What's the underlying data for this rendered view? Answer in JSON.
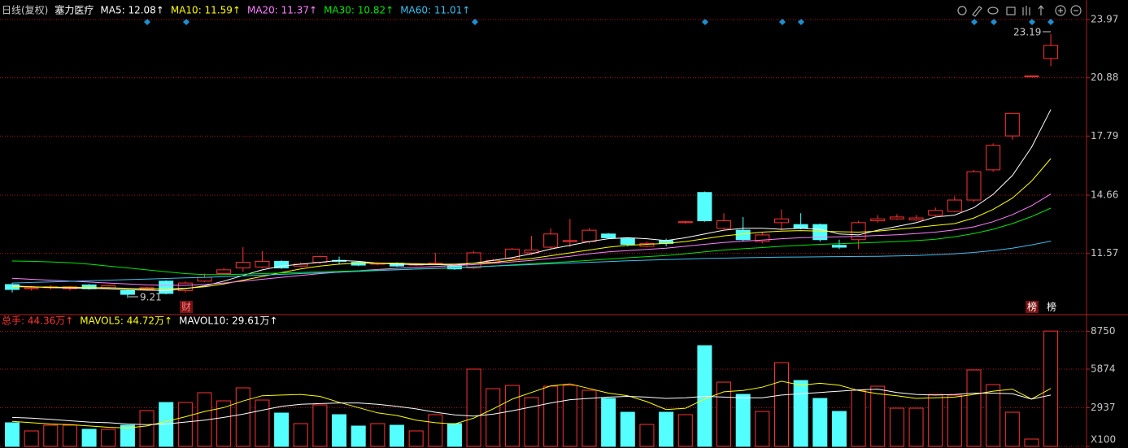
{
  "chart_data": [
    {
      "type": "candlestick",
      "title": "日线(复权)",
      "subtitle": "塞力医疗",
      "categories": [
        null,
        null,
        null,
        null,
        null,
        null,
        null,
        null,
        null,
        null,
        null,
        null,
        null,
        null,
        null,
        null,
        null,
        null,
        null,
        null,
        null,
        null,
        null,
        null,
        null,
        null,
        null,
        null,
        null,
        null,
        null,
        null,
        null,
        null,
        null,
        null,
        null,
        null,
        null,
        null,
        null,
        null,
        null,
        null,
        null,
        null,
        null,
        null,
        null,
        null,
        null,
        null,
        null,
        null,
        null
      ],
      "open": [
        9.92,
        9.7,
        9.75,
        9.7,
        9.9,
        9.75,
        9.6,
        9.65,
        10.1,
        9.6,
        10.1,
        10.5,
        10.8,
        10.85,
        11.15,
        10.9,
        11.1,
        11.2,
        11.1,
        11.0,
        11.05,
        10.95,
        11.0,
        10.9,
        10.8,
        11.1,
        11.3,
        11.6,
        11.9,
        12.2,
        12.2,
        12.6,
        12.35,
        11.95,
        12.25,
        13.2,
        14.8,
        12.9,
        12.8,
        12.2,
        13.2,
        13.1,
        13.1,
        12.0,
        12.3,
        13.3,
        13.4,
        13.35,
        13.6,
        13.8,
        14.4,
        16.0,
        17.8,
        20.95,
        21.9
      ],
      "high": [
        10.0,
        9.85,
        9.9,
        9.85,
        9.95,
        9.9,
        9.65,
        9.8,
        10.15,
        10.1,
        10.5,
        10.8,
        11.9,
        11.7,
        11.2,
        11.1,
        11.45,
        11.4,
        11.15,
        11.1,
        11.1,
        11.05,
        11.6,
        10.8,
        11.7,
        11.3,
        11.85,
        12.5,
        12.9,
        13.4,
        12.9,
        12.65,
        12.4,
        12.2,
        12.35,
        13.3,
        14.85,
        13.7,
        13.5,
        12.7,
        13.9,
        13.7,
        13.15,
        12.3,
        13.3,
        13.6,
        13.65,
        13.6,
        14.0,
        14.6,
        16.0,
        17.4,
        19.0,
        20.98,
        23.19
      ],
      "low": [
        9.5,
        9.6,
        9.65,
        9.6,
        9.65,
        9.7,
        9.21,
        9.6,
        9.4,
        9.5,
        10.05,
        10.45,
        10.6,
        10.8,
        10.75,
        10.85,
        11.0,
        11.0,
        10.9,
        10.95,
        10.85,
        10.9,
        10.95,
        10.7,
        10.75,
        11.05,
        11.25,
        11.5,
        11.8,
        11.9,
        12.1,
        12.35,
        11.95,
        11.9,
        11.95,
        13.15,
        13.25,
        12.85,
        12.2,
        12.1,
        12.8,
        12.85,
        12.2,
        11.8,
        11.8,
        13.2,
        13.35,
        13.3,
        13.55,
        13.75,
        14.3,
        15.9,
        17.6,
        20.95,
        21.5
      ],
      "close": [
        9.66,
        9.75,
        9.8,
        9.8,
        9.7,
        9.85,
        9.4,
        9.75,
        9.45,
        10.0,
        10.3,
        10.7,
        11.1,
        11.15,
        10.8,
        11.0,
        11.4,
        11.15,
        10.95,
        11.05,
        10.9,
        11.0,
        11.05,
        10.75,
        11.6,
        11.2,
        11.8,
        11.75,
        12.6,
        12.25,
        12.8,
        12.4,
        12.05,
        12.1,
        12.1,
        13.25,
        13.3,
        13.3,
        12.3,
        12.55,
        13.4,
        12.9,
        12.3,
        11.9,
        13.2,
        13.4,
        13.5,
        13.45,
        13.85,
        14.4,
        15.9,
        17.3,
        19.0,
        20.98,
        22.6
      ],
      "up_color": "#ff3232",
      "down_color": "#54ffff",
      "series": [
        {
          "name": "MA5: 12.08↑",
          "color": "#ffffff",
          "values": [
            9.85,
            9.8,
            9.76,
            9.74,
            9.72,
            9.7,
            9.65,
            9.62,
            9.6,
            9.7,
            9.85,
            10.1,
            10.4,
            10.7,
            10.9,
            11.0,
            11.1,
            11.2,
            11.15,
            11.05,
            11.0,
            10.98,
            10.98,
            10.95,
            11.05,
            11.2,
            11.35,
            11.55,
            11.8,
            12.0,
            12.2,
            12.35,
            12.4,
            12.35,
            12.25,
            12.4,
            12.6,
            12.8,
            12.9,
            12.9,
            12.85,
            12.9,
            12.85,
            12.6,
            12.55,
            12.8,
            13.0,
            13.2,
            13.5,
            13.6,
            14.0,
            14.7,
            15.7,
            17.2,
            19.2
          ]
        },
        {
          "name": "MA10: 11.59↑",
          "color": "#ffff00",
          "values": [
            9.8,
            9.8,
            9.78,
            9.77,
            9.76,
            9.75,
            9.72,
            9.7,
            9.7,
            9.72,
            9.8,
            9.95,
            10.15,
            10.35,
            10.55,
            10.75,
            10.9,
            11.0,
            11.05,
            11.05,
            11.05,
            11.02,
            11.0,
            11.0,
            11.05,
            11.1,
            11.2,
            11.3,
            11.45,
            11.6,
            11.75,
            11.9,
            12.0,
            12.05,
            12.1,
            12.2,
            12.35,
            12.5,
            12.6,
            12.7,
            12.75,
            12.78,
            12.75,
            12.72,
            12.7,
            12.75,
            12.85,
            12.95,
            13.05,
            13.15,
            13.45,
            13.9,
            14.5,
            15.4,
            16.6
          ]
        },
        {
          "name": "MA20: 11.37↑",
          "color": "#ff80ff",
          "values": [
            10.25,
            10.2,
            10.15,
            10.1,
            10.05,
            10.0,
            9.95,
            9.9,
            9.88,
            9.88,
            9.92,
            10.0,
            10.1,
            10.2,
            10.3,
            10.4,
            10.5,
            10.58,
            10.65,
            10.72,
            10.78,
            10.83,
            10.88,
            10.92,
            10.98,
            11.05,
            11.12,
            11.2,
            11.3,
            11.42,
            11.55,
            11.65,
            11.72,
            11.78,
            11.85,
            11.95,
            12.05,
            12.15,
            12.22,
            12.28,
            12.35,
            12.4,
            12.43,
            12.45,
            12.48,
            12.52,
            12.56,
            12.62,
            12.7,
            12.82,
            12.98,
            13.25,
            13.62,
            14.1,
            14.72
          ]
        },
        {
          "name": "MA30: 10.82↑",
          "color": "#00e600",
          "values": [
            11.17,
            11.15,
            11.12,
            11.08,
            11.0,
            10.9,
            10.8,
            10.7,
            10.6,
            10.5,
            10.45,
            10.45,
            10.47,
            10.5,
            10.53,
            10.56,
            10.59,
            10.62,
            10.65,
            10.68,
            10.71,
            10.74,
            10.77,
            10.8,
            10.85,
            10.9,
            10.96,
            11.02,
            11.08,
            11.14,
            11.2,
            11.27,
            11.34,
            11.4,
            11.46,
            11.55,
            11.65,
            11.75,
            11.82,
            11.88,
            11.95,
            12.0,
            12.05,
            12.08,
            12.12,
            12.16,
            12.2,
            12.25,
            12.32,
            12.45,
            12.62,
            12.85,
            13.15,
            13.52,
            13.97
          ]
        },
        {
          "name": "MA60: 11.01↑",
          "color": "#3cc0f0",
          "values": [
            10.0,
            10.03,
            10.06,
            10.09,
            10.12,
            10.15,
            10.18,
            10.21,
            10.24,
            10.27,
            10.3,
            10.34,
            10.38,
            10.42,
            10.46,
            10.5,
            10.54,
            10.58,
            10.62,
            10.66,
            10.7,
            10.74,
            10.78,
            10.82,
            10.86,
            10.9,
            10.94,
            10.98,
            11.02,
            11.06,
            11.1,
            11.14,
            11.18,
            11.21,
            11.24,
            11.27,
            11.3,
            11.32,
            11.34,
            11.36,
            11.37,
            11.38,
            11.39,
            11.4,
            11.41,
            11.42,
            11.44,
            11.46,
            11.5,
            11.55,
            11.62,
            11.72,
            11.85,
            12.02,
            12.22
          ]
        }
      ],
      "annotations": [
        "23.19",
        "9.21",
        "财",
        "榜",
        "榜"
      ],
      "ylim": [
        8.41,
        24.4
      ],
      "yticks": [
        11.57,
        14.66,
        17.79,
        20.88,
        23.97
      ],
      "grid": true
    },
    {
      "type": "bar",
      "title": "总手: 44.36万↑",
      "categories": [
        null,
        null,
        null,
        null,
        null,
        null,
        null,
        null,
        null,
        null,
        null,
        null,
        null,
        null,
        null,
        null,
        null,
        null,
        null,
        null,
        null,
        null,
        null,
        null,
        null,
        null,
        null,
        null,
        null,
        null,
        null,
        null,
        null,
        null,
        null,
        null,
        null,
        null,
        null,
        null,
        null,
        null,
        null,
        null,
        null,
        null,
        null,
        null,
        null,
        null,
        null,
        null,
        null,
        null,
        null
      ],
      "values": [
        1793,
        1175,
        1607,
        1607,
        1298,
        1298,
        1607,
        2720,
        3338,
        3338,
        4080,
        3461,
        4451,
        3523,
        2534,
        1731,
        3153,
        2411,
        1545,
        1731,
        1607,
        1175,
        2411,
        1731,
        5874,
        4389,
        4637,
        3708,
        4575,
        4637,
        4266,
        3647,
        2596,
        1669,
        2596,
        2411,
        7660,
        4884,
        3956,
        2658,
        6369,
        5008,
        3647,
        2658,
        4266,
        4575,
        2906,
        2906,
        3956,
        3894,
        5812,
        4698,
        2596,
        556,
        8770
      ],
      "series": [
        {
          "name": "MAVOL5: 44.72万↑",
          "color": "#ffff00",
          "values": [
            1900,
            1800,
            1700,
            1650,
            1550,
            1450,
            1400,
            1550,
            1900,
            2250,
            2650,
            2950,
            3450,
            3850,
            3900,
            3950,
            3800,
            3350,
            2950,
            2550,
            2350,
            2000,
            1800,
            1700,
            2150,
            2850,
            3600,
            4100,
            4600,
            4750,
            4400,
            4050,
            3850,
            3400,
            2800,
            2900,
            3600,
            4150,
            4250,
            4500,
            4950,
            4650,
            4800,
            4650,
            4250,
            4000,
            3850,
            3650,
            3700,
            3750,
            3950,
            4200,
            4350,
            3600,
            4400
          ]
        },
        {
          "name": "MAVOL10: 29.61万↑",
          "color": "#ffffff",
          "values": [
            2200,
            2150,
            2050,
            1950,
            1850,
            1800,
            1700,
            1650,
            1700,
            1850,
            2000,
            2200,
            2450,
            2750,
            3050,
            3200,
            3250,
            3300,
            3300,
            3200,
            3050,
            2850,
            2600,
            2400,
            2300,
            2450,
            2700,
            3000,
            3300,
            3550,
            3650,
            3750,
            3800,
            3750,
            3650,
            3700,
            3800,
            3750,
            3700,
            3700,
            3900,
            4000,
            4100,
            4200,
            4300,
            4350,
            4100,
            3950,
            3900,
            3950,
            4050,
            4050,
            4000,
            3600,
            3900
          ]
        }
      ],
      "ylim": [
        0,
        9213
      ],
      "yticks": [
        {
          "value": 0,
          "label": "X100"
        },
        2937,
        5874,
        8750
      ],
      "grid": true
    }
  ]
}
